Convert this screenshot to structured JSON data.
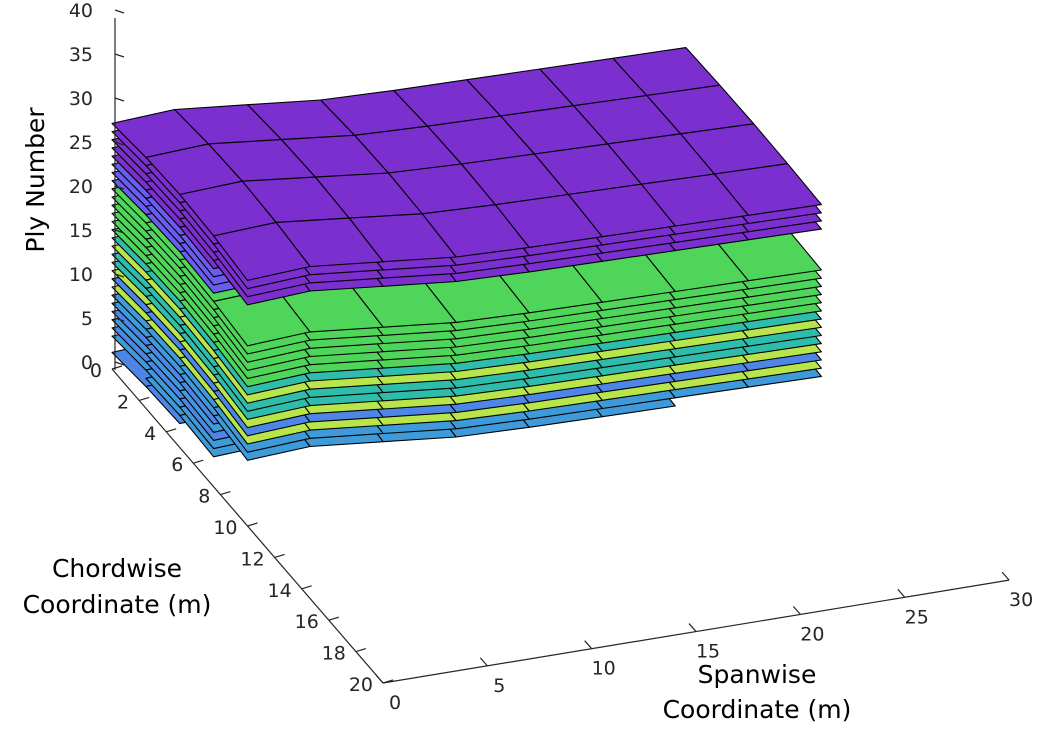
{
  "chart_data": {
    "type": "surface3d",
    "title": "",
    "xlabel": [
      "Spanwise",
      "Coordinate (m)"
    ],
    "ylabel": [
      "Chordwise",
      "Coordinate (m)"
    ],
    "zlabel": "Ply Number",
    "xlim": [
      0,
      30
    ],
    "ylim": [
      0,
      20
    ],
    "zlim": [
      0,
      40
    ],
    "x_ticks": [
      "0",
      "5",
      "10",
      "15",
      "20",
      "25",
      "30"
    ],
    "y_ticks": [
      "0",
      "2",
      "4",
      "6",
      "8",
      "10",
      "12",
      "14",
      "16",
      "18",
      "20"
    ],
    "z_ticks": [
      "0",
      "5",
      "10",
      "15",
      "20",
      "25",
      "30",
      "35",
      "40"
    ],
    "grid": false,
    "legend": "none",
    "colors": {
      "purple": "#7b2fcf",
      "violet": "#6a5cf0",
      "blue": "#4d86e6",
      "sky": "#3e9ad8",
      "teal": "#2fbcab",
      "green": "#4fd65a",
      "lime": "#b8e64a"
    },
    "series": [
      {
        "ply": 1,
        "extent": [
          0,
          6
        ],
        "color": "blue"
      },
      {
        "ply": 2,
        "extent": [
          1,
          8
        ],
        "color": "sky"
      },
      {
        "ply": 3,
        "extent": [
          0,
          8
        ],
        "color": "sky"
      },
      {
        "ply": 4,
        "extent": [
          0,
          9
        ],
        "color": "blue"
      },
      {
        "ply": 5,
        "extent": [
          0,
          9
        ],
        "color": "sky"
      },
      {
        "ply": 6,
        "extent": [
          0,
          9
        ],
        "color": "blue"
      },
      {
        "ply": 7,
        "extent": [
          0,
          10
        ],
        "color": "sky"
      },
      {
        "ply": 8,
        "extent": [
          0,
          12
        ],
        "color": "sky"
      },
      {
        "ply": 9,
        "extent": [
          0,
          14
        ],
        "color": "lime"
      },
      {
        "ply": 10,
        "extent": [
          0,
          14
        ],
        "color": "blue"
      },
      {
        "ply": 11,
        "extent": [
          0,
          14
        ],
        "color": "lime"
      },
      {
        "ply": 12,
        "extent": [
          0,
          14
        ],
        "color": "teal"
      },
      {
        "ply": 13,
        "extent": [
          0,
          14
        ],
        "color": "teal"
      },
      {
        "ply": 14,
        "extent": [
          0,
          14
        ],
        "color": "lime"
      },
      {
        "ply": 15,
        "extent": [
          0,
          14
        ],
        "color": "teal"
      },
      {
        "ply": 16,
        "extent": [
          0,
          14
        ],
        "color": "green"
      },
      {
        "ply": 17,
        "extent": [
          0,
          14
        ],
        "color": "green"
      },
      {
        "ply": 18,
        "extent": [
          0,
          14
        ],
        "color": "green"
      },
      {
        "ply": 19,
        "extent": [
          0,
          14
        ],
        "color": "green"
      },
      {
        "ply": 20,
        "extent": [
          0,
          14
        ],
        "color": "green"
      },
      {
        "ply": 21,
        "extent": [
          0,
          14
        ],
        "color": "green"
      },
      {
        "ply": 22,
        "extent": [
          0,
          8
        ],
        "color": "violet"
      },
      {
        "ply": 23,
        "extent": [
          0,
          8
        ],
        "color": "violet"
      },
      {
        "ply": 24,
        "extent": [
          0,
          8
        ],
        "color": "violet"
      },
      {
        "ply": 25,
        "extent": [
          0,
          8
        ],
        "color": "purple"
      },
      {
        "ply": 26,
        "extent": [
          0,
          14
        ],
        "color": "purple"
      },
      {
        "ply": 27,
        "extent": [
          0,
          14
        ],
        "color": "purple"
      },
      {
        "ply": 28,
        "extent": [
          0,
          14
        ],
        "color": "purple"
      },
      {
        "ply": 29,
        "extent": [
          0,
          14
        ],
        "color": "purple"
      }
    ]
  }
}
